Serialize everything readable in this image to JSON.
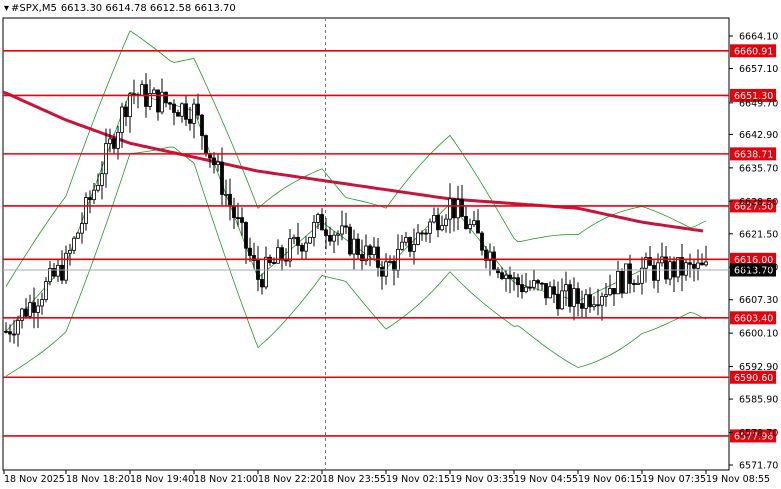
{
  "header": {
    "symbol": "#SPX,M5",
    "ohlc": "6613.30 6614.78 6612.58 6613.70"
  },
  "colors": {
    "background": "#ffffff",
    "candle": "#000000",
    "level_line": "#e8000b",
    "ma_line": "#c8143c",
    "bands": "#1e9b28",
    "grid_marker": "#777777",
    "price_tag": "#e8000b"
  },
  "chart_data": {
    "type": "candlestick",
    "title": "#SPX,M5",
    "ylim": [
      6570.0,
      6669.0
    ],
    "y_ticks": [
      "6664.10",
      "6657.10",
      "6649.70",
      "6642.90",
      "6635.70",
      "6628.50",
      "6621.50",
      "6614.30",
      "6607.30",
      "6600.10",
      "6592.90",
      "6585.90",
      "6578.70",
      "6571.70"
    ],
    "x_ticks": [
      "18 Nov 2025",
      "18 Nov 18:20",
      "18 Nov 19:40",
      "18 Nov 21:00",
      "18 Nov 22:20",
      "18 Nov 23:55",
      "19 Nov 02:15",
      "19 Nov 03:35",
      "19 Nov 04:55",
      "19 Nov 06:15",
      "19 Nov 07:35",
      "19 Nov 08:55"
    ],
    "horizontal_levels": [
      "6660.91",
      "6651.30",
      "6638.71",
      "6627.50",
      "6616.00",
      "6603.40",
      "6590.60",
      "6577.96"
    ],
    "current_price": "6613.70",
    "series": [
      {
        "name": "",
        "type": "candles",
        "x": [
          "18 Nov 2025",
          "18 Nov 18:20",
          "18 Nov 19:40",
          "18 Nov 21:00",
          "18 Nov 22:20",
          "18 Nov 23:55",
          "19 Nov 02:15",
          "19 Nov 03:35",
          "19 Nov 04:55",
          "19 Nov 06:15",
          "19 Nov 07:35",
          "19 Nov 08:55"
        ],
        "close": [
          6600,
          6615,
          6652,
          6648,
          6612,
          6624,
          6614,
          6628,
          6611,
          6607,
          6613.7,
          6613.7
        ]
      },
      {
        "name": "",
        "type": "moving_average",
        "x": [
          "18 Nov 2025",
          "18 Nov 18:20",
          "18 Nov 19:40",
          "18 Nov 21:00",
          "18 Nov 22:20",
          "18 Nov 23:55",
          "19 Nov 02:15",
          "19 Nov 03:35",
          "19 Nov 04:55",
          "19 Nov 06:15",
          "19 Nov 07:35",
          "19 Nov 08:55"
        ],
        "values": [
          6652,
          6646,
          6641,
          6638,
          6635,
          6633,
          6631,
          6629,
          6628,
          6627,
          6624,
          6622
        ]
      }
    ]
  }
}
